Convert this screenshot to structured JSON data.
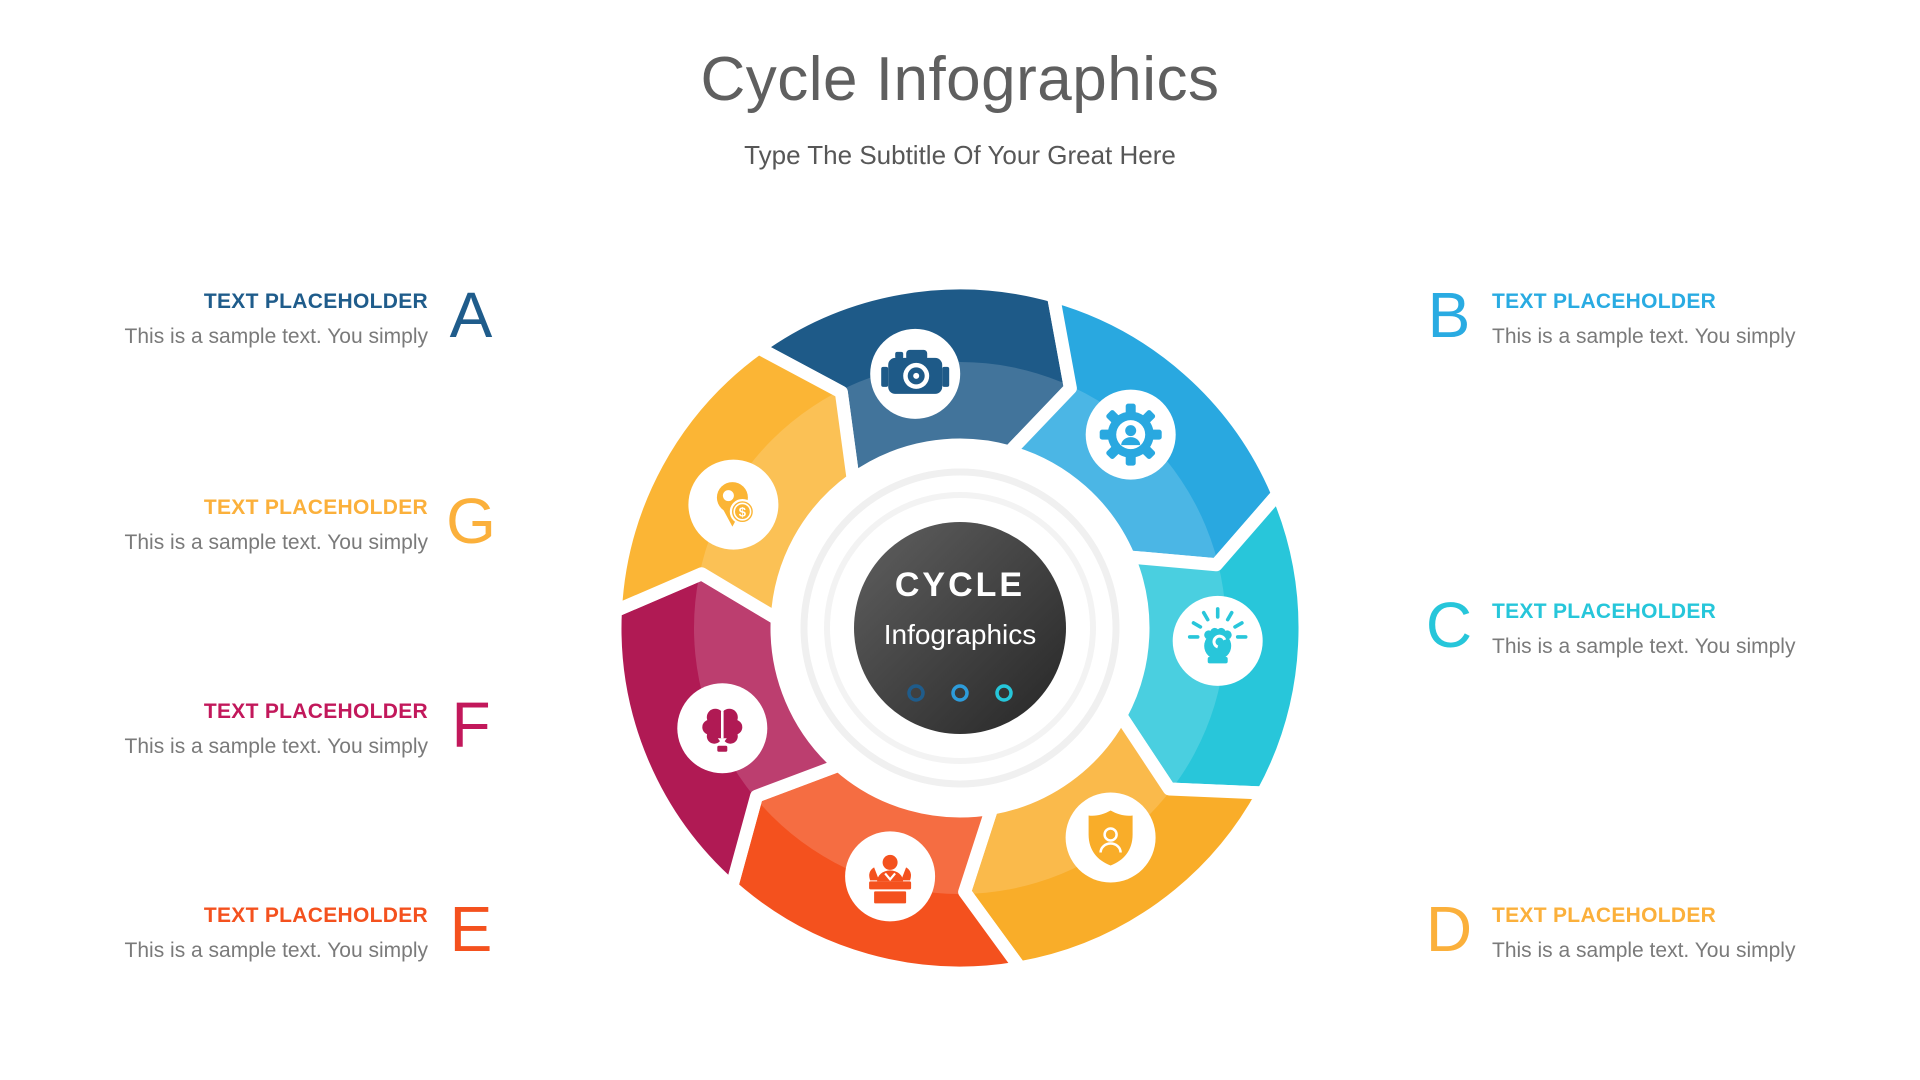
{
  "slide": {
    "title": "Cycle Infographics",
    "subtitle": "Type The Subtitle Of Your Great Here"
  },
  "colors": {
    "title_text": "#5F5F5F",
    "subtitle_text": "#575757",
    "body_text": "#7A7A7A",
    "background": "#FFFFFF"
  },
  "items": {
    "a": {
      "letter": "A",
      "heading": "TEXT PLACEHOLDER",
      "body": "This is a sample text. You simply",
      "color": "#1F5C8B"
    },
    "b": {
      "letter": "B",
      "heading": "TEXT PLACEHOLDER",
      "body": "This is a sample text. You simply",
      "color": "#29ABE2"
    },
    "c": {
      "letter": "C",
      "heading": "TEXT PLACEHOLDER",
      "body": "This is a sample text. You simply",
      "color": "#26C6DA"
    },
    "d": {
      "letter": "D",
      "heading": "TEXT PLACEHOLDER",
      "body": "This is a sample text. You simply",
      "color": "#FBB03B"
    },
    "e": {
      "letter": "E",
      "heading": "TEXT PLACEHOLDER",
      "body": "This is a sample text. You simply",
      "color": "#F4511E"
    },
    "f": {
      "letter": "F",
      "heading": "TEXT PLACEHOLDER",
      "body": "This is a sample text. You simply",
      "color": "#C2185B"
    },
    "g": {
      "letter": "G",
      "heading": "TEXT PLACEHOLDER",
      "body": "This is a sample text. You simply",
      "color": "#FBB03B"
    }
  },
  "center": {
    "title": "CYCLE",
    "subtitle": "Infographics",
    "dot_colors": [
      "#1F5C8B",
      "#2D9CDB",
      "#26C6DA"
    ],
    "circle_gradient": [
      "#606060",
      "#262626"
    ]
  },
  "wheel": {
    "segments": [
      {
        "id": "a",
        "color": "#1E5A88",
        "icon": "camera-icon"
      },
      {
        "id": "b",
        "color": "#29A8E0",
        "icon": "gear-user-icon"
      },
      {
        "id": "c",
        "color": "#28C6DA",
        "icon": "fist-rays-icon"
      },
      {
        "id": "d",
        "color": "#F9AD29",
        "icon": "shield-user-icon"
      },
      {
        "id": "e",
        "color": "#F4511E",
        "icon": "presenter-icon"
      },
      {
        "id": "f",
        "color": "#B01A54",
        "icon": "brain-icon"
      },
      {
        "id": "g",
        "color": "#FBB535",
        "icon": "money-pin-icon"
      }
    ]
  }
}
